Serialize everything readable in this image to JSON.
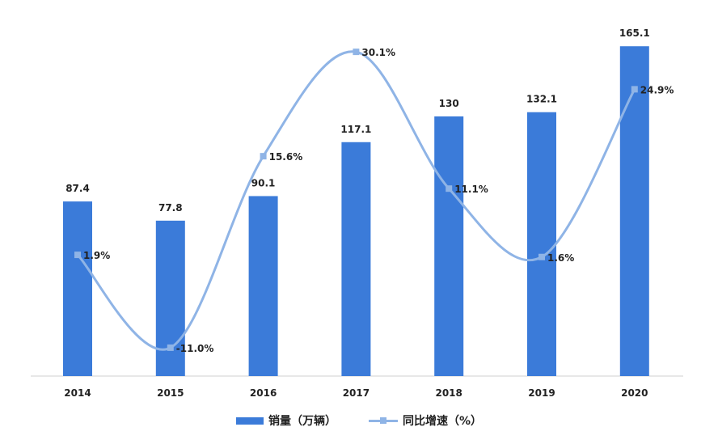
{
  "chart_data": {
    "type": "bar+line",
    "categories": [
      "2014",
      "2015",
      "2016",
      "2017",
      "2018",
      "2019",
      "2020"
    ],
    "series": [
      {
        "name": "销量（万辆）",
        "type": "bar",
        "axis": "left",
        "values": [
          87.4,
          77.8,
          90.1,
          117.1,
          130,
          132.1,
          165.1
        ],
        "labels": [
          "87.4",
          "77.8",
          "90.1",
          "117.1",
          "130",
          "132.1",
          "165.1"
        ],
        "color": "#3b7bd9"
      },
      {
        "name": "同比增速（%）",
        "type": "line",
        "axis": "right",
        "smooth": true,
        "values": [
          1.9,
          -11.0,
          15.6,
          30.1,
          11.1,
          1.6,
          24.9
        ],
        "labels": [
          "1.9%",
          "-11.0%",
          "15.6%",
          "30.1%",
          "11.1%",
          "1.6%",
          "24.9%"
        ],
        "color": "#8fb4e6"
      }
    ],
    "legend": "bottom-center",
    "grid": false
  }
}
